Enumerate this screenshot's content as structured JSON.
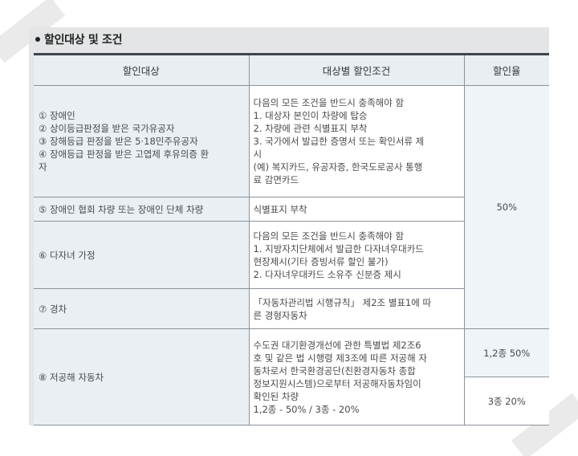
{
  "section": {
    "title": "할인대상 및 조건"
  },
  "table": {
    "headers": {
      "target": "할인대상",
      "conditions": "대상별 할인조건",
      "rate": "할인율"
    },
    "rows": [
      {
        "target": [
          "① 장애인",
          "② 상이등급판정을 받은 국가유공자",
          "③ 장해등급 판정을 받은 5·18민주유공자",
          "④ 장애등급 판정을 받은 고엽제 후유의증 환",
          "자"
        ],
        "conditions": [
          "다음의 모든 조건을 반드시 충족해야 함",
          "1. 대상자 본인이 차량에 탑승",
          "2. 차량에 관련 식별표지 부착",
          "3. 국가에서 발급한 증명서 또는 확인서류 제",
          "시",
          "(예) 복지카드, 유공자증, 한국도로공사 통행",
          "료 감면카드"
        ]
      },
      {
        "target": [
          "⑤ 장애인 협회 차량 또는 장애인 단체 차량"
        ],
        "conditions": [
          "식별표지 부착"
        ]
      },
      {
        "target": [
          "⑥ 다자녀 가정"
        ],
        "conditions": [
          "다음의 모든 조건을 반드시 충족해야 함",
          "1. 지방자치단체에서 발급한 다자녀우대카드",
          "현장제시(기타 증빙서류 할인 불가)",
          "2. 다자녀우대카드 소유주 신분증 제시"
        ]
      },
      {
        "target": [
          "⑦ 경차"
        ],
        "conditions": [
          "「자동차관리법 시행규칙」 제2조 별표1에 따",
          "른 경형자동차"
        ]
      },
      {
        "target": [
          "⑧ 저공해 자동차"
        ],
        "conditions": [
          "수도권 대기환경개선에 관한 특별법 제2조6",
          "호 및 같은 법 시행령 제3조에 따른 저공해 자",
          "동차로서 한국환경공단(친환경자동차 종합",
          "정보지원시스템)으로부터 저공해자동차임이",
          "확인된 차량",
          "1,2종 - 50% / 3종 - 20%"
        ]
      }
    ],
    "rate_shared": "50%",
    "rate_low_1": "1,2종 50%",
    "rate_low_2": "3종 20%"
  }
}
